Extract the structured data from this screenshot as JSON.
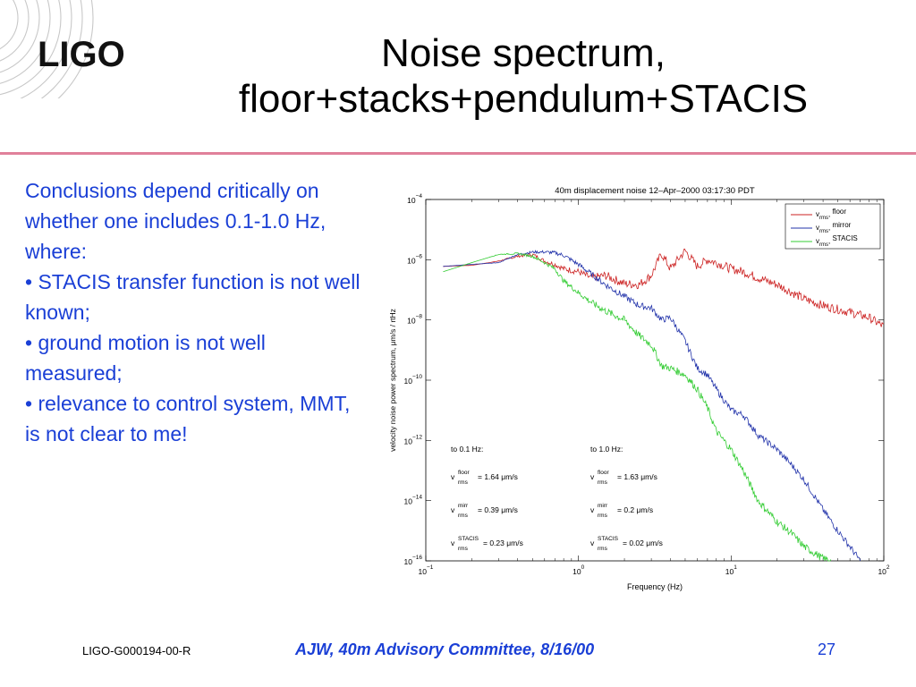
{
  "logo": {
    "text": "LIGO"
  },
  "slide": {
    "title_line1": "Noise spectrum,",
    "title_line2": "floor+stacks+pendulum+STACIS",
    "conclusions": [
      "Conclusions depend critically on whether one includes 0.1-1.0 Hz, where:",
      "• STACIS transfer function is not well known;",
      "• ground motion is not well measured;",
      "• relevance to control system, MMT, is not clear to me!"
    ]
  },
  "footer": {
    "doc_id": "LIGO-G000194-00-R",
    "center": "AJW, 40m Advisory Committee, 8/16/00",
    "page": "27"
  },
  "chart_data": {
    "type": "line",
    "title": "40m displacement noise 12–Apr–2000 03:17:30 PDT",
    "xlabel": "Frequency (Hz)",
    "ylabel": "velocity noise power spectrum, μm/s / rtHz",
    "x_scale": "log",
    "y_scale": "log",
    "xlim": [
      0.1,
      100
    ],
    "ylim": [
      1e-16,
      0.0001
    ],
    "x_ticks": [
      {
        "value": 0.1,
        "base": "10",
        "exp": "−1"
      },
      {
        "value": 1,
        "base": "10",
        "exp": "0"
      },
      {
        "value": 10,
        "base": "10",
        "exp": "1"
      },
      {
        "value": 100,
        "base": "10",
        "exp": "2"
      }
    ],
    "y_ticks": [
      {
        "value": 0.0001,
        "base": "10",
        "exp": "−4"
      },
      {
        "value": 1e-06,
        "base": "10",
        "exp": "−6"
      },
      {
        "value": 1e-08,
        "base": "10",
        "exp": "−8"
      },
      {
        "value": 1e-10,
        "base": "10",
        "exp": "−10"
      },
      {
        "value": 1e-12,
        "base": "10",
        "exp": "−12"
      },
      {
        "value": 1e-14,
        "base": "10",
        "exp": "−14"
      },
      {
        "value": 1e-16,
        "base": "10",
        "exp": "−16"
      }
    ],
    "grid": false,
    "legend_position": "top-right",
    "series": [
      {
        "name": "floor",
        "legend_sub": "rms",
        "color": "#cc2222",
        "x": [
          0.13,
          0.2,
          0.3,
          0.4,
          0.5,
          0.6,
          0.7,
          0.8,
          1.0,
          1.2,
          1.5,
          2.0,
          2.5,
          3.0,
          3.5,
          4.0,
          5.0,
          6.0,
          7.0,
          8.0,
          10,
          12,
          15,
          20,
          30,
          40,
          60,
          80,
          100
        ],
        "y": [
          6e-07,
          6.5e-07,
          9e-07,
          1.3e-06,
          1.5e-06,
          9e-07,
          7e-07,
          5e-07,
          4e-07,
          2.5e-07,
          3e-07,
          1.6e-07,
          1.5e-07,
          3e-07,
          1.6e-06,
          5e-07,
          2e-06,
          6e-07,
          1e-06,
          8e-07,
          5e-07,
          4e-07,
          2.5e-07,
          1.5e-07,
          5e-08,
          3e-08,
          1.8e-08,
          1.2e-08,
          6e-09
        ],
        "noise": 0.3
      },
      {
        "name": "mirror",
        "legend_sub": "rms",
        "color": "#2233aa",
        "x": [
          0.13,
          0.2,
          0.3,
          0.4,
          0.5,
          0.6,
          0.7,
          0.8,
          1.0,
          1.2,
          1.5,
          2.0,
          2.5,
          3.0,
          3.5,
          4.0,
          5.0,
          6.0,
          7.0,
          8.0,
          10,
          12,
          15,
          20,
          25,
          30,
          40,
          50,
          60,
          70
        ],
        "y": [
          6e-07,
          7e-07,
          8e-07,
          1.5e-06,
          1.8e-06,
          1.8e-06,
          1.7e-06,
          1.4e-06,
          7e-07,
          3.5e-07,
          1.5e-07,
          6e-08,
          3e-08,
          2.5e-08,
          1e-08,
          1.2e-08,
          2e-09,
          2.5e-10,
          1.5e-10,
          5e-11,
          1e-11,
          7e-12,
          1.5e-12,
          5e-13,
          1.5e-13,
          5e-14,
          5e-15,
          1e-15,
          3e-16,
          1e-16
        ],
        "noise": 0.22
      },
      {
        "name": "STACIS",
        "legend_sub": "rms",
        "color": "#33cc33",
        "x": [
          0.13,
          0.2,
          0.3,
          0.4,
          0.5,
          0.6,
          0.7,
          0.8,
          1.0,
          1.2,
          1.5,
          2.0,
          2.5,
          3.0,
          3.5,
          4.0,
          5.0,
          6.0,
          7.0,
          8.0,
          10,
          12,
          15,
          20,
          25,
          30,
          40,
          45
        ],
        "y": [
          4e-07,
          8e-07,
          1.5e-06,
          1.6e-06,
          1.3e-06,
          8e-07,
          5e-07,
          2e-07,
          8e-08,
          4e-08,
          2e-08,
          1e-08,
          3e-09,
          1.5e-09,
          3e-10,
          2.5e-10,
          1.5e-10,
          5e-11,
          1.2e-11,
          2e-12,
          5e-13,
          1e-13,
          1e-14,
          2e-15,
          8e-16,
          3e-16,
          1.2e-16,
          1e-16
        ],
        "noise": 0.25
      }
    ],
    "annotations": {
      "col1_header": "to 0.1 Hz:",
      "col2_header": "to 1.0 Hz:",
      "rows": [
        {
          "sup": "floor",
          "sub": "rms",
          "val1": "= 1.64 μm/s",
          "val2": "= 1.63 μm/s"
        },
        {
          "sup": "mirr",
          "sub": "rms",
          "val1": "= 0.39 μm/s",
          "val2": "= 0.2 μm/s"
        },
        {
          "sup": "STACIS",
          "sub": "rms",
          "val1": "= 0.23 μm/s",
          "val2": "= 0.02 μm/s"
        }
      ]
    }
  }
}
